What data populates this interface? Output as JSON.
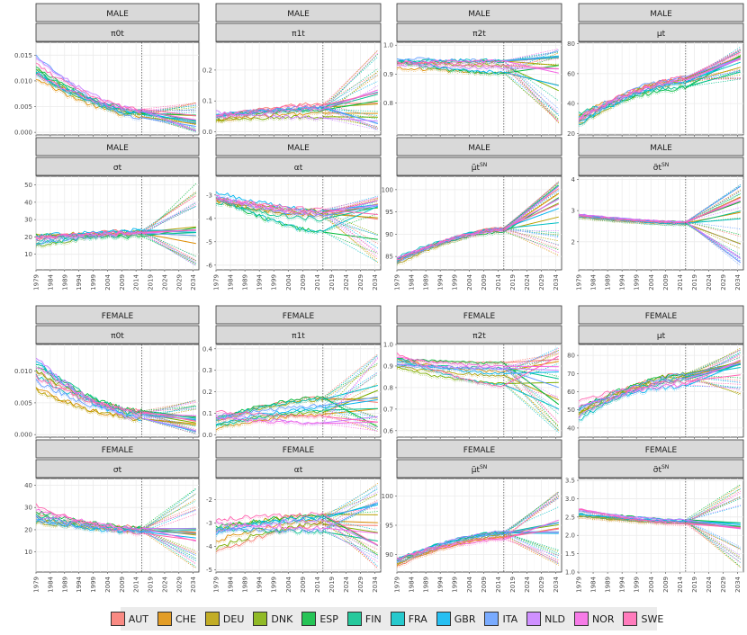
{
  "chart_data": {
    "type": "line",
    "title": "",
    "xlabel": "",
    "ylabel": "",
    "forecast_start_year": 2016,
    "years_range": [
      1979,
      2036
    ],
    "x_tick_labels": [
      "1979",
      "1984",
      "1989",
      "1994",
      "1999",
      "2004",
      "2009",
      "2014",
      "2019",
      "2024",
      "2029",
      "2034"
    ],
    "countries": [
      "AUT",
      "CHE",
      "DEU",
      "DNK",
      "ESP",
      "FIN",
      "FRA",
      "GBR",
      "ITA",
      "NLD",
      "NOR",
      "SWE"
    ],
    "country_colors": [
      "#F8766D",
      "#DE8C00",
      "#B79F00",
      "#7CAE00",
      "#00BA38",
      "#00C08B",
      "#00BFC4",
      "#00B4F0",
      "#619CFF",
      "#C77CFF",
      "#F564E3",
      "#FF64B0"
    ],
    "panels": [
      {
        "sex": "MALE",
        "param": "π0t",
        "ylim": [
          -0.0005,
          0.0175
        ],
        "ticks": [
          0.0,
          0.005,
          0.01,
          0.015
        ],
        "tick_labels": [
          "0.000",
          "0.005",
          "0.010",
          "0.015"
        ],
        "start": [
          0.0085,
          0.0162
        ],
        "at_2016": [
          0.0025,
          0.0045
        ],
        "end": [
          0.0003,
          0.0035
        ],
        "pi_lower": 0.0,
        "pi_upper": 0.0062,
        "noise": 0.0004
      },
      {
        "sex": "MALE",
        "param": "π1t",
        "ylim": [
          -0.01,
          0.29
        ],
        "ticks": [
          0.0,
          0.1,
          0.2
        ],
        "tick_labels": [
          "0.0",
          "0.1",
          "0.2"
        ],
        "start": [
          0.03,
          0.07
        ],
        "at_2016": [
          0.03,
          0.1
        ],
        "end": [
          0.02,
          0.16
        ],
        "pi_lower": 0.005,
        "pi_upper": 0.27,
        "noise": 0.006
      },
      {
        "sex": "MALE",
        "param": "π2t",
        "ylim": [
          0.69,
          1.01
        ],
        "ticks": [
          0.8,
          0.9,
          1.0
        ],
        "tick_labels": [
          "0.8",
          "0.9",
          "1.0"
        ],
        "start": [
          0.92,
          0.96
        ],
        "at_2016": [
          0.9,
          0.95
        ],
        "end": [
          0.84,
          0.97
        ],
        "pi_lower": 0.72,
        "pi_upper": 0.99,
        "noise": 0.006
      },
      {
        "sex": "MALE",
        "param": "μt",
        "ylim": [
          19,
          81
        ],
        "ticks": [
          20,
          40,
          60,
          80
        ],
        "tick_labels": [
          "20",
          "40",
          "60",
          "80"
        ],
        "start": [
          22,
          37
        ],
        "at_2016": [
          50,
          58
        ],
        "end": [
          60,
          75
        ],
        "pi_lower": 55,
        "pi_upper": 78,
        "noise": 1.5
      },
      {
        "sex": "MALE",
        "param": "σt",
        "ylim": [
          1,
          55
        ],
        "ticks": [
          10,
          20,
          30,
          40,
          50
        ],
        "tick_labels": [
          "10",
          "20",
          "30",
          "40",
          "50"
        ],
        "start": [
          12,
          27
        ],
        "at_2016": [
          20,
          24
        ],
        "end": [
          16,
          26
        ],
        "pi_lower": 3,
        "pi_upper": 52,
        "noise": 1.2
      },
      {
        "sex": "MALE",
        "param": "αt",
        "ylim": [
          -6.2,
          -2.2
        ],
        "ticks": [
          -6,
          -5,
          -4,
          -3
        ],
        "tick_labels": [
          "-6",
          "-5",
          "-4",
          "-3"
        ],
        "start": [
          -3.7,
          -2.6
        ],
        "at_2016": [
          -4.6,
          -3.6
        ],
        "end": [
          -5.0,
          -3.2
        ],
        "pi_lower": -6.0,
        "pi_upper": -3.0,
        "noise": 0.1
      },
      {
        "sex": "MALE",
        "param": "μ̃t SN",
        "ylim": [
          82,
          103
        ],
        "ticks": [
          85,
          90,
          95,
          100
        ],
        "tick_labels": [
          "85",
          "90",
          "95",
          "100"
        ],
        "start": [
          83,
          85.5
        ],
        "at_2016": [
          90.5,
          91.5
        ],
        "end": [
          92.5,
          101
        ],
        "pi_lower": 84,
        "pi_upper": 102,
        "noise": 0.25
      },
      {
        "sex": "MALE",
        "param": "σ̃t SN",
        "ylim": [
          1.1,
          4.1
        ],
        "ticks": [
          2,
          3,
          4
        ],
        "tick_labels": [
          "2",
          "3",
          "4"
        ],
        "start": [
          2.75,
          2.95
        ],
        "at_2016": [
          2.55,
          2.65
        ],
        "end": [
          1.3,
          3.8
        ],
        "pi_lower": 1.2,
        "pi_upper": 3.9,
        "noise": 0.02
      },
      {
        "sex": "FEMALE",
        "param": "π0t",
        "ylim": [
          -0.0004,
          0.0142
        ],
        "ticks": [
          0.0,
          0.005,
          0.01
        ],
        "tick_labels": [
          "0.000",
          "0.005",
          "0.010"
        ],
        "start": [
          0.006,
          0.0135
        ],
        "at_2016": [
          0.0022,
          0.0038
        ],
        "end": [
          0.0002,
          0.003
        ],
        "pi_lower": 0.0,
        "pi_upper": 0.0055,
        "noise": 0.0004
      },
      {
        "sex": "FEMALE",
        "param": "π1t",
        "ylim": [
          -0.01,
          0.42
        ],
        "ticks": [
          0.0,
          0.1,
          0.2,
          0.3,
          0.4
        ],
        "tick_labels": [
          "0.0",
          "0.1",
          "0.2",
          "0.3",
          "0.4"
        ],
        "start": [
          0.02,
          0.11
        ],
        "at_2016": [
          0.05,
          0.18
        ],
        "end": [
          0.03,
          0.25
        ],
        "pi_lower": 0.01,
        "pi_upper": 0.38,
        "noise": 0.008
      },
      {
        "sex": "FEMALE",
        "param": "π2t",
        "ylim": [
          0.57,
          1.0
        ],
        "ticks": [
          0.6,
          0.7,
          0.8,
          0.9,
          1.0
        ],
        "tick_labels": [
          "0.6",
          "0.7",
          "0.8",
          "0.9",
          "1.0"
        ],
        "start": [
          0.88,
          0.96
        ],
        "at_2016": [
          0.8,
          0.92
        ],
        "end": [
          0.68,
          0.95
        ],
        "pi_lower": 0.58,
        "pi_upper": 0.99,
        "noise": 0.006
      },
      {
        "sex": "FEMALE",
        "param": "μt",
        "ylim": [
          35,
          86
        ],
        "ticks": [
          40,
          50,
          60,
          70,
          80
        ],
        "tick_labels": [
          "40",
          "50",
          "60",
          "70",
          "80"
        ],
        "start": [
          39,
          56
        ],
        "at_2016": [
          63,
          70
        ],
        "end": [
          65,
          78
        ],
        "pi_lower": 58,
        "pi_upper": 84,
        "noise": 1.2
      },
      {
        "sex": "FEMALE",
        "param": "σt",
        "ylim": [
          1,
          43
        ],
        "ticks": [
          10,
          20,
          30,
          40
        ],
        "tick_labels": [
          "10",
          "20",
          "30",
          "40"
        ],
        "start": [
          20,
          32
        ],
        "at_2016": [
          18,
          21
        ],
        "end": [
          14,
          21
        ],
        "pi_lower": 2,
        "pi_upper": 40,
        "noise": 1.0
      },
      {
        "sex": "FEMALE",
        "param": "αt",
        "ylim": [
          -5.1,
          -1.1
        ],
        "ticks": [
          -5,
          -4,
          -3,
          -2
        ],
        "tick_labels": [
          "-5",
          "-4",
          "-3",
          "-2"
        ],
        "start": [
          -4.3,
          -2.7
        ],
        "at_2016": [
          -3.4,
          -2.6
        ],
        "end": [
          -4.0,
          -2.1
        ],
        "pi_lower": -5.0,
        "pi_upper": -1.3,
        "noise": 0.1
      },
      {
        "sex": "FEMALE",
        "param": "μ̃t SN",
        "ylim": [
          87,
          103
        ],
        "ticks": [
          90,
          95,
          100
        ],
        "tick_labels": [
          "90",
          "95",
          "100"
        ],
        "start": [
          88,
          89.5
        ],
        "at_2016": [
          92.5,
          94
        ],
        "end": [
          93.5,
          96
        ],
        "pi_lower": 88,
        "pi_upper": 102.5,
        "noise": 0.2
      },
      {
        "sex": "FEMALE",
        "param": "σ̃t SN",
        "ylim": [
          1.0,
          3.55
        ],
        "ticks": [
          1.0,
          1.5,
          2.0,
          2.5,
          3.0,
          3.5
        ],
        "tick_labels": [
          "1.0",
          "1.5",
          "2.0",
          "2.5",
          "3.0",
          "3.5"
        ],
        "start": [
          2.5,
          2.75
        ],
        "at_2016": [
          2.3,
          2.45
        ],
        "end": [
          2.15,
          2.4
        ],
        "pi_lower": 1.1,
        "pi_upper": 3.4,
        "noise": 0.02
      }
    ]
  },
  "legend": {
    "items": [
      "AUT",
      "CHE",
      "DEU",
      "DNK",
      "ESP",
      "FIN",
      "FRA",
      "GBR",
      "ITA",
      "NLD",
      "NOR",
      "SWE"
    ]
  }
}
